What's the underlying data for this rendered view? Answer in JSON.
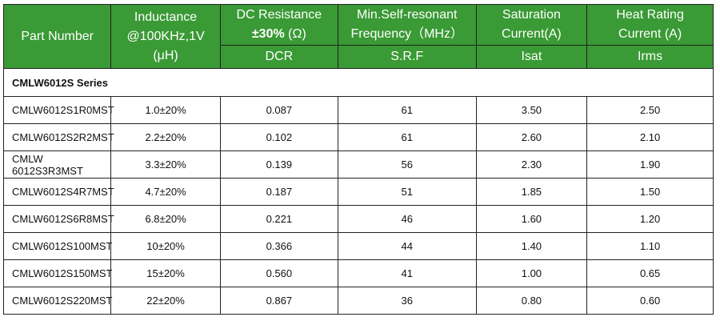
{
  "header": {
    "part_number": "Part Number",
    "inductance_line1": "Inductance",
    "inductance_line2": "@100KHz,1V",
    "inductance_line3": "(μH)",
    "dcr_line1": "DC Resistance",
    "dcr_bold": "±30%",
    "dcr_unit": " (Ω)",
    "dcr_sub": "DCR",
    "srf_line1": "Min.Self-resonant",
    "srf_line2": "Frequency（MHz）",
    "srf_sub": "S.R.F",
    "isat_line1": "Saturation",
    "isat_line2": "Current(A)",
    "isat_sub": "Isat",
    "irms_line1": "Heat Rating",
    "irms_line2": "Current (A)",
    "irms_sub": "Irms"
  },
  "series_title": "CMLW6012S Series",
  "rows": [
    {
      "part": "CMLW6012S1R0MST",
      "inductance": "1.0±20%",
      "dcr": "0.087",
      "srf": "61",
      "isat": "3.50",
      "irms": "2.50"
    },
    {
      "part": "CMLW6012S2R2MST",
      "inductance": "2.2±20%",
      "dcr": "0.102",
      "srf": "61",
      "isat": "2.60",
      "irms": "2.10"
    },
    {
      "part": "CMLW 6012S3R3MST",
      "inductance": "3.3±20%",
      "dcr": "0.139",
      "srf": "56",
      "isat": "2.30",
      "irms": "1.90"
    },
    {
      "part": "CMLW6012S4R7MST",
      "inductance": "4.7±20%",
      "dcr": "0.187",
      "srf": "51",
      "isat": "1.85",
      "irms": "1.50"
    },
    {
      "part": "CMLW6012S6R8MST",
      "inductance": "6.8±20%",
      "dcr": "0.221",
      "srf": "46",
      "isat": "1.60",
      "irms": "1.20"
    },
    {
      "part": "CMLW6012S100MST",
      "inductance": "10±20%",
      "dcr": "0.366",
      "srf": "44",
      "isat": "1.40",
      "irms": "1.10"
    },
    {
      "part": "CMLW6012S150MST",
      "inductance": "15±20%",
      "dcr": "0.560",
      "srf": "41",
      "isat": "1.00",
      "irms": "0.65"
    },
    {
      "part": "CMLW6012S220MST",
      "inductance": "22±20%",
      "dcr": "0.867",
      "srf": "36",
      "isat": "0.80",
      "irms": "0.60"
    }
  ],
  "colors": {
    "header_bg": "#3a9a35",
    "header_text": "#ffffff",
    "border": "#222222"
  }
}
